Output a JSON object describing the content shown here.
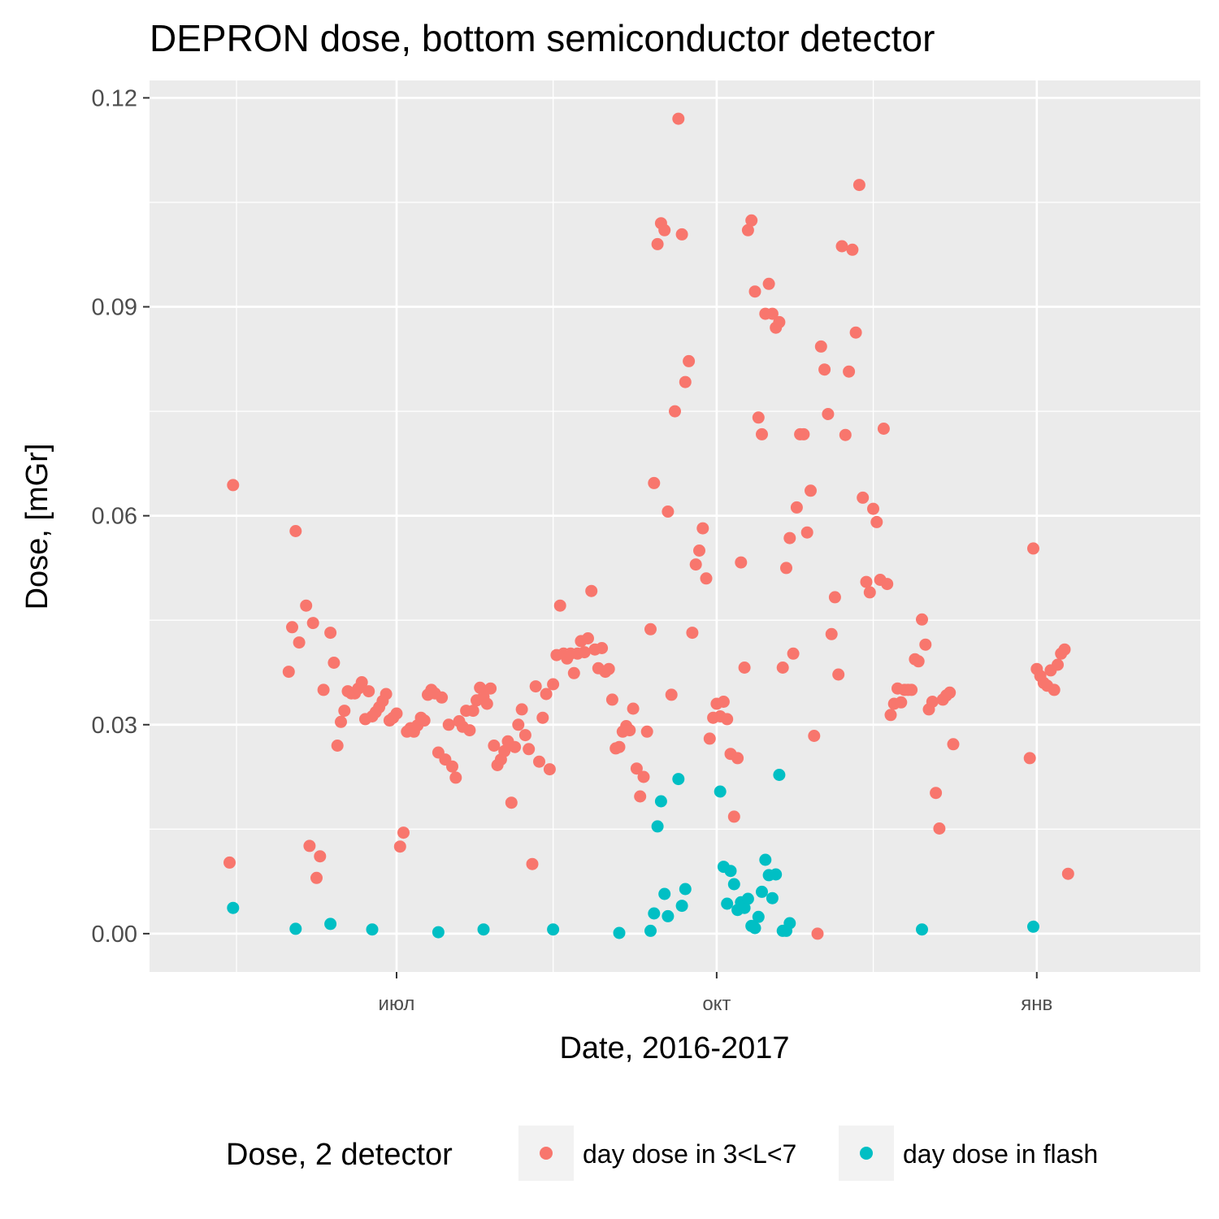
{
  "chart_data": {
    "type": "scatter",
    "title": "DEPRON dose, bottom semiconductor detector",
    "xlabel": "Date, 2016-2017",
    "ylabel": "Dose, [mGr]",
    "xlim": [
      "2016-04-21",
      "2017-02-17"
    ],
    "ylim": [
      -0.0055,
      0.1225
    ],
    "x_ticks": [
      {
        "date": "2016-07-01",
        "label": "июл"
      },
      {
        "date": "2016-10-01",
        "label": "окт"
      },
      {
        "date": "2017-01-01",
        "label": "янв"
      }
    ],
    "y_ticks": [
      {
        "value": 0.0,
        "label": "0.00"
      },
      {
        "value": 0.03,
        "label": "0.03"
      },
      {
        "value": 0.06,
        "label": "0.06"
      },
      {
        "value": 0.09,
        "label": "0.09"
      },
      {
        "value": 0.12,
        "label": "0.12"
      }
    ],
    "x_minor_ticks": [
      "2016-05-16",
      "2016-08-15",
      "2016-11-15"
    ],
    "y_minor_ticks": [
      0.015,
      0.045,
      0.075,
      0.105
    ],
    "grid": true,
    "legend": {
      "title": "Dose, 2 detector",
      "position": "bottom"
    },
    "series": [
      {
        "name": "day dose in 3<L<7",
        "color": "#F8766D",
        "points": [
          [
            "2016-05-14",
            0.0102
          ],
          [
            "2016-05-15",
            0.0644
          ],
          [
            "2016-05-31",
            0.0376
          ],
          [
            "2016-06-01",
            0.044
          ],
          [
            "2016-06-02",
            0.0578
          ],
          [
            "2016-06-03",
            0.0418
          ],
          [
            "2016-06-05",
            0.0471
          ],
          [
            "2016-06-06",
            0.0126
          ],
          [
            "2016-06-07",
            0.0446
          ],
          [
            "2016-06-08",
            0.008
          ],
          [
            "2016-06-09",
            0.0111
          ],
          [
            "2016-06-10",
            0.035
          ],
          [
            "2016-06-12",
            0.0432
          ],
          [
            "2016-06-13",
            0.0389
          ],
          [
            "2016-06-14",
            0.027
          ],
          [
            "2016-06-15",
            0.0304
          ],
          [
            "2016-06-16",
            0.032
          ],
          [
            "2016-06-17",
            0.0348
          ],
          [
            "2016-06-18",
            0.0345
          ],
          [
            "2016-06-19",
            0.0345
          ],
          [
            "2016-06-20",
            0.0352
          ],
          [
            "2016-06-21",
            0.0361
          ],
          [
            "2016-06-22",
            0.0308
          ],
          [
            "2016-06-23",
            0.0348
          ],
          [
            "2016-06-24",
            0.0312
          ],
          [
            "2016-06-25",
            0.0318
          ],
          [
            "2016-06-26",
            0.0325
          ],
          [
            "2016-06-27",
            0.0334
          ],
          [
            "2016-06-28",
            0.0344
          ],
          [
            "2016-06-29",
            0.0306
          ],
          [
            "2016-06-30",
            0.031
          ],
          [
            "2016-07-01",
            0.0316
          ],
          [
            "2016-07-02",
            0.0125
          ],
          [
            "2016-07-03",
            0.0145
          ],
          [
            "2016-07-04",
            0.029
          ],
          [
            "2016-07-05",
            0.0295
          ],
          [
            "2016-07-06",
            0.029
          ],
          [
            "2016-07-07",
            0.0299
          ],
          [
            "2016-07-08",
            0.031
          ],
          [
            "2016-07-09",
            0.0306
          ],
          [
            "2016-07-10",
            0.0343
          ],
          [
            "2016-07-11",
            0.035
          ],
          [
            "2016-07-12",
            0.0345
          ],
          [
            "2016-07-13",
            0.026
          ],
          [
            "2016-07-14",
            0.0339
          ],
          [
            "2016-07-15",
            0.025
          ],
          [
            "2016-07-16",
            0.03
          ],
          [
            "2016-07-17",
            0.024
          ],
          [
            "2016-07-18",
            0.0224
          ],
          [
            "2016-07-19",
            0.0305
          ],
          [
            "2016-07-20",
            0.0297
          ],
          [
            "2016-07-21",
            0.032
          ],
          [
            "2016-07-22",
            0.0292
          ],
          [
            "2016-07-23",
            0.032
          ],
          [
            "2016-07-24",
            0.0335
          ],
          [
            "2016-07-25",
            0.0353
          ],
          [
            "2016-07-26",
            0.034
          ],
          [
            "2016-07-27",
            0.033
          ],
          [
            "2016-07-28",
            0.0352
          ],
          [
            "2016-07-29",
            0.027
          ],
          [
            "2016-07-30",
            0.0242
          ],
          [
            "2016-07-31",
            0.025
          ],
          [
            "2016-08-01",
            0.0262
          ],
          [
            "2016-08-02",
            0.0276
          ],
          [
            "2016-08-03",
            0.0188
          ],
          [
            "2016-08-04",
            0.0268
          ],
          [
            "2016-08-05",
            0.03
          ],
          [
            "2016-08-06",
            0.0322
          ],
          [
            "2016-08-07",
            0.0285
          ],
          [
            "2016-08-08",
            0.0265
          ],
          [
            "2016-08-09",
            0.01
          ],
          [
            "2016-08-10",
            0.0355
          ],
          [
            "2016-08-11",
            0.0247
          ],
          [
            "2016-08-12",
            0.031
          ],
          [
            "2016-08-13",
            0.0344
          ],
          [
            "2016-08-14",
            0.0236
          ],
          [
            "2016-08-15",
            0.0358
          ],
          [
            "2016-08-16",
            0.04
          ],
          [
            "2016-08-17",
            0.0471
          ],
          [
            "2016-08-18",
            0.0402
          ],
          [
            "2016-08-19",
            0.0395
          ],
          [
            "2016-08-20",
            0.0402
          ],
          [
            "2016-08-21",
            0.0374
          ],
          [
            "2016-08-22",
            0.0402
          ],
          [
            "2016-08-23",
            0.042
          ],
          [
            "2016-08-24",
            0.0404
          ],
          [
            "2016-08-25",
            0.0424
          ],
          [
            "2016-08-26",
            0.0492
          ],
          [
            "2016-08-27",
            0.0408
          ],
          [
            "2016-08-28",
            0.0381
          ],
          [
            "2016-08-29",
            0.041
          ],
          [
            "2016-08-30",
            0.0376
          ],
          [
            "2016-08-31",
            0.038
          ],
          [
            "2016-09-01",
            0.0336
          ],
          [
            "2016-09-02",
            0.0266
          ],
          [
            "2016-09-03",
            0.0268
          ],
          [
            "2016-09-04",
            0.029
          ],
          [
            "2016-09-05",
            0.0298
          ],
          [
            "2016-09-06",
            0.0292
          ],
          [
            "2016-09-07",
            0.0323
          ],
          [
            "2016-09-08",
            0.0237
          ],
          [
            "2016-09-09",
            0.0197
          ],
          [
            "2016-09-10",
            0.0225
          ],
          [
            "2016-09-11",
            0.029
          ],
          [
            "2016-09-12",
            0.0437
          ],
          [
            "2016-09-13",
            0.0647
          ],
          [
            "2016-09-14",
            0.099
          ],
          [
            "2016-09-15",
            0.102
          ],
          [
            "2016-09-16",
            0.101
          ],
          [
            "2016-09-17",
            0.0606
          ],
          [
            "2016-09-18",
            0.0343
          ],
          [
            "2016-09-19",
            0.075
          ],
          [
            "2016-09-20",
            0.117
          ],
          [
            "2016-09-21",
            0.1004
          ],
          [
            "2016-09-22",
            0.0792
          ],
          [
            "2016-09-23",
            0.0822
          ],
          [
            "2016-09-24",
            0.0432
          ],
          [
            "2016-09-25",
            0.053
          ],
          [
            "2016-09-26",
            0.055
          ],
          [
            "2016-09-27",
            0.0582
          ],
          [
            "2016-09-28",
            0.051
          ],
          [
            "2016-09-29",
            0.028
          ],
          [
            "2016-09-30",
            0.031
          ],
          [
            "2016-10-01",
            0.033
          ],
          [
            "2016-10-02",
            0.0312
          ],
          [
            "2016-10-03",
            0.0333
          ],
          [
            "2016-10-04",
            0.0308
          ],
          [
            "2016-10-05",
            0.0258
          ],
          [
            "2016-10-06",
            0.0168
          ],
          [
            "2016-10-07",
            0.0252
          ],
          [
            "2016-10-08",
            0.0533
          ],
          [
            "2016-10-09",
            0.0382
          ],
          [
            "2016-10-10",
            0.101
          ],
          [
            "2016-10-11",
            0.1024
          ],
          [
            "2016-10-12",
            0.0922
          ],
          [
            "2016-10-13",
            0.0741
          ],
          [
            "2016-10-14",
            0.0717
          ],
          [
            "2016-10-15",
            0.089
          ],
          [
            "2016-10-16",
            0.0933
          ],
          [
            "2016-10-17",
            0.089
          ],
          [
            "2016-10-18",
            0.087
          ],
          [
            "2016-10-19",
            0.0878
          ],
          [
            "2016-10-20",
            0.0382
          ],
          [
            "2016-10-21",
            0.0525
          ],
          [
            "2016-10-22",
            0.0568
          ],
          [
            "2016-10-23",
            0.0402
          ],
          [
            "2016-10-24",
            0.0612
          ],
          [
            "2016-10-25",
            0.0717
          ],
          [
            "2016-10-26",
            0.0717
          ],
          [
            "2016-10-27",
            0.0576
          ],
          [
            "2016-10-28",
            0.0636
          ],
          [
            "2016-10-29",
            0.0284
          ],
          [
            "2016-10-30",
            0.0
          ],
          [
            "2016-10-31",
            0.0843
          ],
          [
            "2016-11-01",
            0.081
          ],
          [
            "2016-11-02",
            0.0746
          ],
          [
            "2016-11-03",
            0.043
          ],
          [
            "2016-11-04",
            0.0483
          ],
          [
            "2016-11-05",
            0.0372
          ],
          [
            "2016-11-06",
            0.0987
          ],
          [
            "2016-11-07",
            0.0716
          ],
          [
            "2016-11-08",
            0.0807
          ],
          [
            "2016-11-09",
            0.0982
          ],
          [
            "2016-11-10",
            0.0863
          ],
          [
            "2016-11-11",
            0.1075
          ],
          [
            "2016-11-12",
            0.0626
          ],
          [
            "2016-11-13",
            0.0505
          ],
          [
            "2016-11-14",
            0.049
          ],
          [
            "2016-11-15",
            0.061
          ],
          [
            "2016-11-16",
            0.0591
          ],
          [
            "2016-11-17",
            0.0508
          ],
          [
            "2016-11-18",
            0.0725
          ],
          [
            "2016-11-19",
            0.0502
          ],
          [
            "2016-11-20",
            0.0314
          ],
          [
            "2016-11-21",
            0.033
          ],
          [
            "2016-11-22",
            0.0352
          ],
          [
            "2016-11-23",
            0.0332
          ],
          [
            "2016-11-24",
            0.035
          ],
          [
            "2016-11-25",
            0.035
          ],
          [
            "2016-11-26",
            0.035
          ],
          [
            "2016-11-27",
            0.0394
          ],
          [
            "2016-11-28",
            0.0391
          ],
          [
            "2016-11-29",
            0.0451
          ],
          [
            "2016-11-30",
            0.0415
          ],
          [
            "2016-12-01",
            0.0322
          ],
          [
            "2016-12-02",
            0.0333
          ],
          [
            "2016-12-03",
            0.0202
          ],
          [
            "2016-12-04",
            0.0151
          ],
          [
            "2016-12-05",
            0.0336
          ],
          [
            "2016-12-06",
            0.0342
          ],
          [
            "2016-12-07",
            0.0346
          ],
          [
            "2016-12-08",
            0.0272
          ],
          [
            "2016-12-30",
            0.0252
          ],
          [
            "2016-12-31",
            0.0553
          ],
          [
            "2017-01-01",
            0.038
          ],
          [
            "2017-01-02",
            0.037
          ],
          [
            "2017-01-03",
            0.036
          ],
          [
            "2017-01-04",
            0.0356
          ],
          [
            "2017-01-05",
            0.0378
          ],
          [
            "2017-01-06",
            0.035
          ],
          [
            "2017-01-07",
            0.0386
          ],
          [
            "2017-01-08",
            0.0402
          ],
          [
            "2017-01-09",
            0.0408
          ],
          [
            "2017-01-10",
            0.0086
          ]
        ]
      },
      {
        "name": "day dose in flash",
        "color": "#00BFC4",
        "points": [
          [
            "2016-05-15",
            0.0037
          ],
          [
            "2016-06-02",
            0.0007
          ],
          [
            "2016-06-12",
            0.0014
          ],
          [
            "2016-06-24",
            0.0006
          ],
          [
            "2016-07-13",
            0.0002
          ],
          [
            "2016-07-26",
            0.0006
          ],
          [
            "2016-08-15",
            0.0006
          ],
          [
            "2016-09-03",
            0.0001
          ],
          [
            "2016-09-12",
            0.0004
          ],
          [
            "2016-09-13",
            0.0029
          ],
          [
            "2016-09-14",
            0.0154
          ],
          [
            "2016-09-15",
            0.019
          ],
          [
            "2016-09-16",
            0.0057
          ],
          [
            "2016-09-17",
            0.0025
          ],
          [
            "2016-09-20",
            0.0222
          ],
          [
            "2016-09-21",
            0.004
          ],
          [
            "2016-09-22",
            0.0064
          ],
          [
            "2016-10-02",
            0.0204
          ],
          [
            "2016-10-03",
            0.0096
          ],
          [
            "2016-10-04",
            0.0043
          ],
          [
            "2016-10-05",
            0.009
          ],
          [
            "2016-10-06",
            0.0071
          ],
          [
            "2016-10-07",
            0.0034
          ],
          [
            "2016-10-08",
            0.0045
          ],
          [
            "2016-10-09",
            0.0037
          ],
          [
            "2016-10-10",
            0.005
          ],
          [
            "2016-10-11",
            0.0011
          ],
          [
            "2016-10-12",
            0.0008
          ],
          [
            "2016-10-13",
            0.0024
          ],
          [
            "2016-10-14",
            0.006
          ],
          [
            "2016-10-15",
            0.0106
          ],
          [
            "2016-10-16",
            0.0084
          ],
          [
            "2016-10-17",
            0.0051
          ],
          [
            "2016-10-18",
            0.0085
          ],
          [
            "2016-10-19",
            0.0228
          ],
          [
            "2016-10-20",
            0.0004
          ],
          [
            "2016-10-21",
            0.0004
          ],
          [
            "2016-10-22",
            0.0015
          ],
          [
            "2016-11-29",
            0.0006
          ],
          [
            "2016-12-31",
            0.001
          ]
        ]
      }
    ]
  }
}
